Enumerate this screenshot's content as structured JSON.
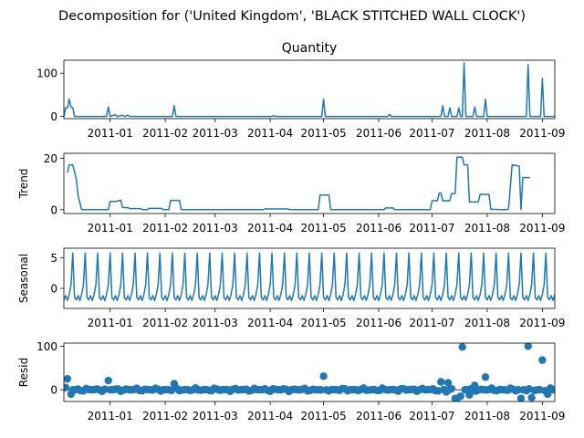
{
  "figure": {
    "title": "Decomposition for ('United Kingdom', 'BLACK STITCHED WALL CLOCK')"
  },
  "colors": {
    "series": "#1f77b4",
    "axes": "#000000",
    "zero_line": "#000000"
  },
  "chart_data": [
    {
      "type": "line",
      "title": "Quantity",
      "ylabel": "",
      "xlim": [
        "2010-12-06",
        "2011-09-08"
      ],
      "ylim": [
        -5,
        130
      ],
      "yticks": [
        0,
        100
      ],
      "xticks": [
        "2011-01",
        "2011-02",
        "2011-03",
        "2011-04",
        "2011-05",
        "2011-06",
        "2011-07",
        "2011-08",
        "2011-09"
      ],
      "show_xticklabels": true,
      "points": [
        [
          "2010-12-06",
          0
        ],
        [
          "2010-12-07",
          20
        ],
        [
          "2010-12-08",
          20
        ],
        [
          "2010-12-09",
          40
        ],
        [
          "2010-12-10",
          22
        ],
        [
          "2010-12-11",
          20
        ],
        [
          "2010-12-12",
          0
        ],
        [
          "2010-12-30",
          0
        ],
        [
          "2010-12-31",
          22
        ],
        [
          "2011-01-01",
          0
        ],
        [
          "2011-01-04",
          4
        ],
        [
          "2011-01-05",
          0
        ],
        [
          "2011-01-08",
          3
        ],
        [
          "2011-01-09",
          0
        ],
        [
          "2011-01-11",
          3
        ],
        [
          "2011-01-12",
          0
        ],
        [
          "2011-02-05",
          0
        ],
        [
          "2011-02-06",
          25
        ],
        [
          "2011-02-07",
          0
        ],
        [
          "2011-04-02",
          0
        ],
        [
          "2011-04-03",
          2
        ],
        [
          "2011-04-04",
          0
        ],
        [
          "2011-04-30",
          0
        ],
        [
          "2011-05-01",
          40
        ],
        [
          "2011-05-02",
          0
        ],
        [
          "2011-06-06",
          0
        ],
        [
          "2011-06-07",
          5
        ],
        [
          "2011-06-08",
          0
        ],
        [
          "2011-07-06",
          0
        ],
        [
          "2011-07-07",
          25
        ],
        [
          "2011-07-08",
          0
        ],
        [
          "2011-07-10",
          0
        ],
        [
          "2011-07-11",
          20
        ],
        [
          "2011-07-12",
          0
        ],
        [
          "2011-07-15",
          0
        ],
        [
          "2011-07-16",
          20
        ],
        [
          "2011-07-17",
          0
        ],
        [
          "2011-07-18",
          0
        ],
        [
          "2011-07-19",
          124
        ],
        [
          "2011-07-20",
          0
        ],
        [
          "2011-07-24",
          0
        ],
        [
          "2011-07-25",
          22
        ],
        [
          "2011-07-26",
          0
        ],
        [
          "2011-07-30",
          0
        ],
        [
          "2011-07-31",
          40
        ],
        [
          "2011-08-01",
          0
        ],
        [
          "2011-08-23",
          0
        ],
        [
          "2011-08-24",
          120
        ],
        [
          "2011-08-25",
          0
        ],
        [
          "2011-08-31",
          0
        ],
        [
          "2011-09-01",
          88
        ],
        [
          "2011-09-02",
          0
        ],
        [
          "2011-09-08",
          0
        ]
      ]
    },
    {
      "type": "line",
      "title": "",
      "ylabel": "Trend",
      "xlim": [
        "2010-12-06",
        "2011-09-08"
      ],
      "ylim": [
        -1.5,
        22
      ],
      "yticks": [
        0,
        20
      ],
      "xticks": [
        "2011-01",
        "2011-02",
        "2011-03",
        "2011-04",
        "2011-05",
        "2011-06",
        "2011-07",
        "2011-08",
        "2011-09"
      ],
      "show_xticklabels": true,
      "points": [
        [
          "2010-12-08",
          14.5
        ],
        [
          "2010-12-09",
          17.5
        ],
        [
          "2010-12-11",
          17.5
        ],
        [
          "2010-12-13",
          12
        ],
        [
          "2010-12-14",
          5.5
        ],
        [
          "2010-12-16",
          0
        ],
        [
          "2010-12-31",
          0
        ],
        [
          "2011-01-01",
          3.2
        ],
        [
          "2011-01-04",
          3.2
        ],
        [
          "2011-01-07",
          3.7
        ],
        [
          "2011-01-08",
          0.8
        ],
        [
          "2011-01-11",
          0.8
        ],
        [
          "2011-01-12",
          0.4
        ],
        [
          "2011-01-18",
          0.4
        ],
        [
          "2011-01-19",
          0
        ],
        [
          "2011-01-22",
          0
        ],
        [
          "2011-01-23",
          0.5
        ],
        [
          "2011-01-30",
          0.5
        ],
        [
          "2011-01-31",
          0
        ],
        [
          "2011-02-03",
          0
        ],
        [
          "2011-02-04",
          3.6
        ],
        [
          "2011-02-09",
          3.6
        ],
        [
          "2011-02-10",
          0
        ],
        [
          "2011-03-28",
          0
        ],
        [
          "2011-03-29",
          0.3
        ],
        [
          "2011-04-11",
          0.3
        ],
        [
          "2011-04-12",
          0
        ],
        [
          "2011-04-28",
          0
        ],
        [
          "2011-04-29",
          5.7
        ],
        [
          "2011-05-04",
          5.7
        ],
        [
          "2011-05-05",
          0
        ],
        [
          "2011-06-04",
          0
        ],
        [
          "2011-06-05",
          0.7
        ],
        [
          "2011-06-09",
          0.7
        ],
        [
          "2011-06-10",
          0
        ],
        [
          "2011-06-30",
          0
        ],
        [
          "2011-07-01",
          3.5
        ],
        [
          "2011-07-04",
          3.5
        ],
        [
          "2011-07-05",
          6.5
        ],
        [
          "2011-07-06",
          6.5
        ],
        [
          "2011-07-07",
          3.5
        ],
        [
          "2011-07-11",
          3.5
        ],
        [
          "2011-07-12",
          6.3
        ],
        [
          "2011-07-14",
          6.3
        ],
        [
          "2011-07-15",
          20.5
        ],
        [
          "2011-07-18",
          20.5
        ],
        [
          "2011-07-19",
          17.5
        ],
        [
          "2011-07-21",
          17.5
        ],
        [
          "2011-07-22",
          3
        ],
        [
          "2011-07-27",
          3
        ],
        [
          "2011-07-28",
          6
        ],
        [
          "2011-08-02",
          6
        ],
        [
          "2011-08-03",
          0.2
        ],
        [
          "2011-08-09",
          0
        ],
        [
          "2011-08-12",
          0
        ],
        [
          "2011-08-13",
          0.3
        ],
        [
          "2011-08-15",
          17.5
        ],
        [
          "2011-08-19",
          17
        ],
        [
          "2011-08-20",
          0
        ],
        [
          "2011-08-21",
          12.5
        ],
        [
          "2011-08-25",
          12.5
        ]
      ]
    },
    {
      "type": "line",
      "title": "",
      "ylabel": "Seasonal",
      "xlim": [
        "2010-12-06",
        "2011-09-08"
      ],
      "ylim": [
        -3.3,
        6.6
      ],
      "yticks": [
        0,
        5
      ],
      "xticks": [
        "2011-01",
        "2011-02",
        "2011-03",
        "2011-04",
        "2011-05",
        "2011-06",
        "2011-07",
        "2011-08",
        "2011-09"
      ],
      "show_xticklabels": true,
      "period_days": 7,
      "start": "2010-12-06",
      "end": "2011-09-08",
      "weekly_pattern": [
        -1.9,
        -1.2,
        -2.0,
        -1.0,
        0.6,
        5.8,
        -1.5
      ]
    },
    {
      "type": "scatter",
      "title": "",
      "ylabel": "Resid",
      "xlim": [
        "2010-12-06",
        "2011-09-08"
      ],
      "ylim": [
        -27,
        107
      ],
      "yticks": [
        0,
        100
      ],
      "xticks": [
        "2011-01",
        "2011-02",
        "2011-03",
        "2011-04",
        "2011-05",
        "2011-06",
        "2011-07",
        "2011-08",
        "2011-09"
      ],
      "show_xticklabels": true,
      "zero_line": true,
      "baseline_spacing_days": 1.5,
      "baseline_spread": 4,
      "outliers": [
        [
          "2010-12-07",
          5
        ],
        [
          "2010-12-08",
          25
        ],
        [
          "2010-12-10",
          -10
        ],
        [
          "2010-12-31",
          21
        ],
        [
          "2011-02-06",
          14
        ],
        [
          "2011-05-01",
          31
        ],
        [
          "2011-07-06",
          18
        ],
        [
          "2011-07-09",
          -5
        ],
        [
          "2011-07-10",
          16
        ],
        [
          "2011-07-14",
          -20
        ],
        [
          "2011-07-15",
          -20
        ],
        [
          "2011-07-17",
          -15
        ],
        [
          "2011-07-18",
          98
        ],
        [
          "2011-07-22",
          -12
        ],
        [
          "2011-07-25",
          10
        ],
        [
          "2011-07-31",
          29
        ],
        [
          "2011-08-20",
          -20
        ],
        [
          "2011-08-24",
          100
        ],
        [
          "2011-08-26",
          -18
        ],
        [
          "2011-09-01",
          68
        ],
        [
          "2011-09-04",
          -10
        ]
      ]
    }
  ]
}
